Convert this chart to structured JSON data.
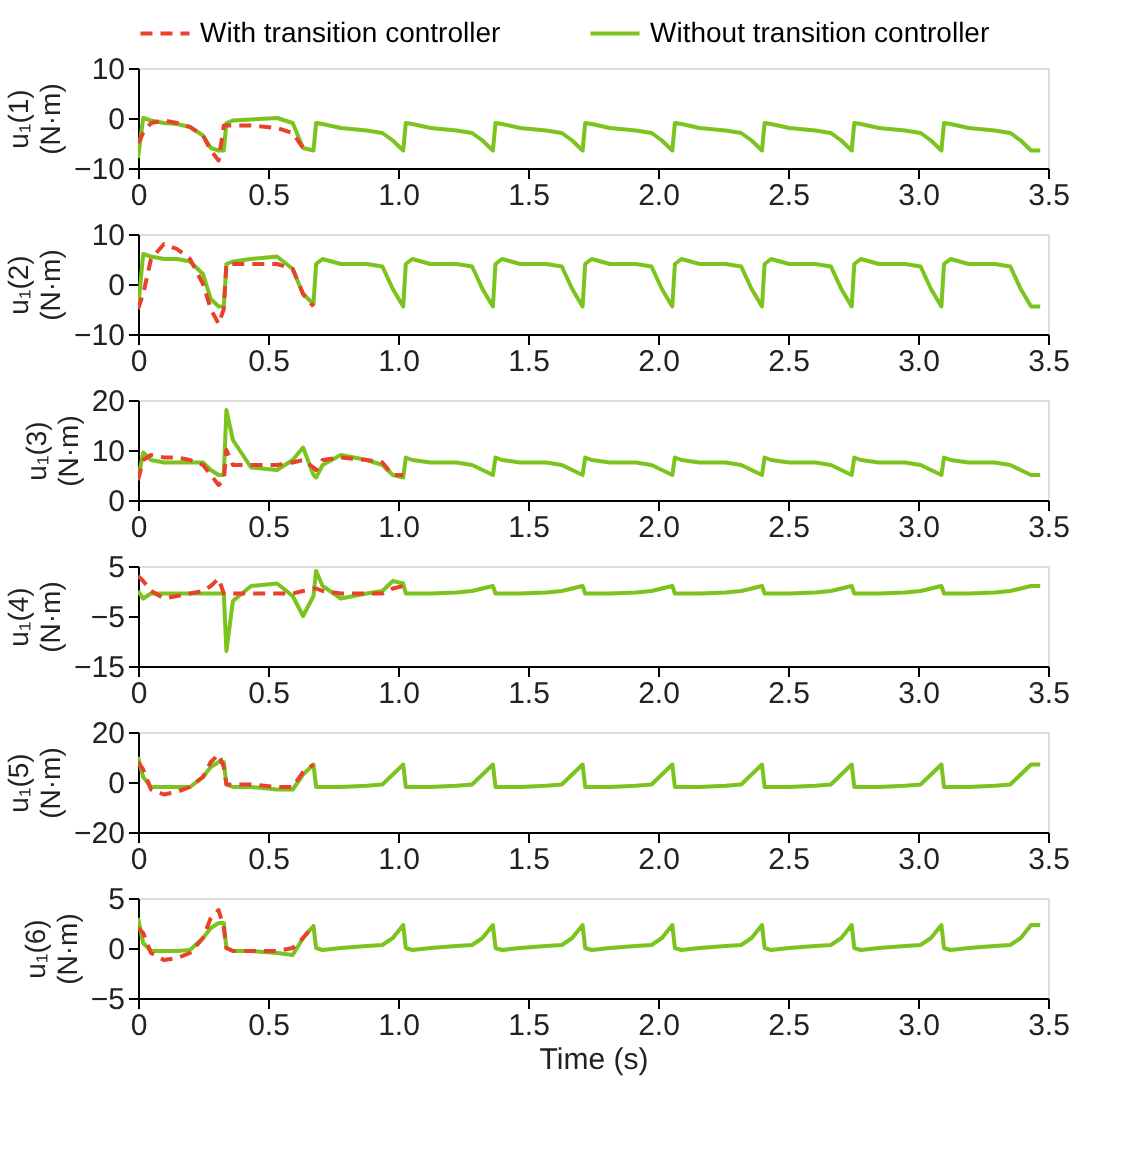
{
  "chart_data": [
    {
      "type": "line",
      "legend": "top",
      "ylabel": "u₁(1)\n(N·m)",
      "xlim": [
        0,
        3.5
      ],
      "xticks": [
        0,
        0.5,
        {
          "value": 1,
          "label": "1.0"
        },
        1.5,
        {
          "value": 2,
          "label": "2.0"
        },
        2.5,
        {
          "value": 3,
          "label": "3.0"
        },
        3.5
      ],
      "ylim": [
        -10,
        10
      ],
      "yticks": [
        -10,
        0,
        10
      ],
      "x": [
        0,
        0.02,
        0.05,
        0.1,
        0.15,
        0.2,
        0.25,
        0.28,
        0.31,
        0.33,
        0.34,
        0.365,
        0.435,
        0.535,
        0.595,
        0.635,
        0.675,
        0.685,
        0.71,
        0.78,
        0.88,
        0.94,
        0.98,
        1.02,
        1.03,
        1.055,
        1.125,
        1.225,
        1.285,
        1.325,
        1.365,
        1.375,
        1.4,
        1.47,
        1.57,
        1.63,
        1.67,
        1.71,
        1.72,
        1.745,
        1.815,
        1.915,
        1.975,
        2.015,
        2.055,
        2.065,
        2.09,
        2.16,
        2.26,
        2.32,
        2.36,
        2.4,
        2.41,
        2.435,
        2.505,
        2.605,
        2.665,
        2.705,
        2.745,
        2.755,
        2.78,
        2.85,
        2.95,
        3.01,
        3.05,
        3.09,
        3.1,
        3.125,
        3.195,
        3.295,
        3.355,
        3.395,
        3.435,
        3.47
      ],
      "series": [
        {
          "name": "With transition controller",
          "color": "#e8412c",
          "line_style": "dashed",
          "values": [
            -5,
            -3,
            -1,
            -0.5,
            -1,
            -1.8,
            -3.5,
            -6.5,
            -8.5,
            -1.5,
            -1.5,
            -1.5,
            -1.5,
            -2,
            -3,
            -6,
            null,
            null,
            null,
            null,
            null,
            null,
            null,
            null,
            null,
            null,
            null,
            null,
            null,
            null,
            null,
            null,
            null,
            null,
            null,
            null,
            null,
            null,
            null,
            null,
            null,
            null,
            null,
            null,
            null,
            null,
            null,
            null,
            null,
            null,
            null,
            null,
            null,
            null,
            null,
            null,
            null,
            null,
            null,
            null,
            null,
            null,
            null,
            null,
            null,
            null,
            null,
            null,
            null,
            null,
            null,
            null,
            null,
            null
          ]
        },
        {
          "name": "Without transition controller",
          "color": "#7ac41d",
          "line_style": "solid",
          "values": [
            -8,
            0,
            -0.5,
            -1,
            -1.2,
            -1.8,
            -3.5,
            -6,
            -6.5,
            -6.5,
            -1,
            -0.5,
            -0.3,
            0,
            -1,
            -6,
            -6.5,
            -1,
            -1.2,
            -2,
            -2.5,
            -3,
            -4.5,
            -6.5,
            -1,
            -1.2,
            -2,
            -2.5,
            -3,
            -4.5,
            -6.5,
            -1,
            -1.2,
            -2,
            -2.5,
            -3,
            -4.5,
            -6.5,
            -1,
            -1.2,
            -2,
            -2.5,
            -3,
            -4.5,
            -6.5,
            -1,
            -1.2,
            -2,
            -2.5,
            -3,
            -4.5,
            -6.5,
            -1,
            -1.2,
            -2,
            -2.5,
            -3,
            -4.5,
            -6.5,
            -1,
            -1.2,
            -2,
            -2.5,
            -3,
            -4.5,
            -6.5,
            -1,
            -1.2,
            -2,
            -2.5,
            -3,
            -4.5,
            -6.5,
            -6.5
          ]
        }
      ]
    },
    {
      "type": "line",
      "ylabel": "u₁(2)\n(N·m)",
      "xlim": [
        0,
        3.5
      ],
      "xticks": [
        0,
        0.5,
        {
          "value": 1,
          "label": "1.0"
        },
        1.5,
        {
          "value": 2,
          "label": "2.0"
        },
        2.5,
        {
          "value": 3,
          "label": "3.0"
        },
        3.5
      ],
      "ylim": [
        -10,
        10
      ],
      "yticks": [
        -10,
        0,
        10
      ],
      "x": [
        0,
        0.02,
        0.05,
        0.1,
        0.15,
        0.2,
        0.25,
        0.28,
        0.31,
        0.33,
        0.34,
        0.365,
        0.435,
        0.535,
        0.595,
        0.635,
        0.675,
        0.685,
        0.71,
        0.78,
        0.88,
        0.94,
        0.98,
        1.02,
        1.03,
        1.055,
        1.125,
        1.225,
        1.285,
        1.325,
        1.365,
        1.375,
        1.4,
        1.47,
        1.57,
        1.63,
        1.67,
        1.71,
        1.72,
        1.745,
        1.815,
        1.915,
        1.975,
        2.015,
        2.055,
        2.065,
        2.09,
        2.16,
        2.26,
        2.32,
        2.36,
        2.4,
        2.41,
        2.435,
        2.505,
        2.605,
        2.665,
        2.705,
        2.745,
        2.755,
        2.78,
        2.85,
        2.95,
        3.01,
        3.05,
        3.09,
        3.1,
        3.125,
        3.195,
        3.295,
        3.355,
        3.395,
        3.435,
        3.47
      ],
      "series": [
        {
          "color": "#e8412c",
          "line_style": "dashed",
          "values": [
            -5,
            -2,
            5,
            8,
            7,
            5,
            0,
            -5,
            -8,
            -5,
            4,
            4,
            4,
            4,
            3,
            -2,
            -4.5,
            null,
            null,
            null,
            null,
            null,
            null,
            null,
            null,
            null,
            null,
            null,
            null,
            null,
            null,
            null,
            null,
            null,
            null,
            null,
            null,
            null,
            null,
            null,
            null,
            null,
            null,
            null,
            null,
            null,
            null,
            null,
            null,
            null,
            null,
            null,
            null,
            null,
            null,
            null,
            null,
            null,
            null,
            null,
            null,
            null,
            null,
            null,
            null,
            null,
            null,
            null,
            null,
            null,
            null,
            null,
            null,
            null
          ]
        },
        {
          "color": "#7ac41d",
          "line_style": "solid",
          "values": [
            -5,
            6,
            5.5,
            5,
            5,
            4.5,
            2,
            -3,
            -4.5,
            -4.5,
            4,
            4.5,
            5,
            5.5,
            3,
            -2,
            -4,
            4,
            5,
            4,
            4,
            3.5,
            -1,
            -4.5,
            4,
            5,
            4,
            4,
            3.5,
            -1,
            -4.5,
            4,
            5,
            4,
            4,
            3.5,
            -1,
            -4.5,
            4,
            5,
            4,
            4,
            3.5,
            -1,
            -4.5,
            4,
            5,
            4,
            4,
            3.5,
            -1,
            -4.5,
            4,
            5,
            4,
            4,
            3.5,
            -1,
            -4.5,
            4,
            5,
            4,
            4,
            3.5,
            -1,
            -4.5,
            4,
            5,
            4,
            4,
            3.5,
            -1,
            -4.5,
            -4.5
          ]
        }
      ]
    },
    {
      "type": "line",
      "ylabel": "u₁(3)\n(N·m)",
      "xlim": [
        0,
        3.5
      ],
      "xticks": [
        0,
        0.5,
        {
          "value": 1,
          "label": "1.0"
        },
        1.5,
        {
          "value": 2,
          "label": "2.0"
        },
        2.5,
        {
          "value": 3,
          "label": "3.0"
        },
        3.5
      ],
      "ylim": [
        0,
        20
      ],
      "yticks": [
        0,
        10,
        20
      ],
      "x": [
        0,
        0.02,
        0.05,
        0.1,
        0.15,
        0.2,
        0.25,
        0.28,
        0.31,
        0.33,
        0.34,
        0.365,
        0.435,
        0.535,
        0.595,
        0.635,
        0.675,
        0.685,
        0.71,
        0.78,
        0.88,
        0.94,
        0.98,
        1.02,
        1.03,
        1.055,
        1.125,
        1.225,
        1.285,
        1.325,
        1.365,
        1.375,
        1.4,
        1.47,
        1.57,
        1.63,
        1.67,
        1.71,
        1.72,
        1.745,
        1.815,
        1.915,
        1.975,
        2.015,
        2.055,
        2.065,
        2.09,
        2.16,
        2.26,
        2.32,
        2.36,
        2.4,
        2.41,
        2.435,
        2.505,
        2.605,
        2.665,
        2.705,
        2.745,
        2.755,
        2.78,
        2.85,
        2.95,
        3.01,
        3.05,
        3.09,
        3.1,
        3.125,
        3.195,
        3.295,
        3.355,
        3.395,
        3.435,
        3.47
      ],
      "series": [
        {
          "color": "#e8412c",
          "line_style": "dashed",
          "values": [
            4,
            8,
            9,
            8.5,
            8.5,
            8,
            7,
            5,
            3,
            4,
            10,
            7,
            7,
            7,
            7.5,
            8,
            6.5,
            6,
            8,
            8.5,
            8,
            7.5,
            5,
            5,
            null,
            null,
            null,
            null,
            null,
            null,
            null,
            null,
            null,
            null,
            null,
            null,
            null,
            null,
            null,
            null,
            null,
            null,
            null,
            null,
            null,
            null,
            null,
            null,
            null,
            null,
            null,
            null,
            null,
            null,
            null,
            null,
            null,
            null,
            null,
            null,
            null,
            null,
            null,
            null,
            null,
            null,
            null,
            null,
            null,
            null,
            null,
            null,
            null,
            null
          ]
        },
        {
          "color": "#7ac41d",
          "line_style": "solid",
          "values": [
            4,
            9.5,
            8,
            7.5,
            7.5,
            7.5,
            7.5,
            6,
            5,
            5,
            18,
            12,
            6.5,
            6,
            8,
            10.5,
            5,
            4.5,
            7,
            9,
            8,
            7,
            5,
            4.5,
            8.5,
            8,
            7.5,
            7.5,
            7,
            6,
            5,
            8.5,
            8,
            7.5,
            7.5,
            7,
            6,
            5,
            8.5,
            8,
            7.5,
            7.5,
            7,
            6,
            5,
            8.5,
            8,
            7.5,
            7.5,
            7,
            6,
            5,
            8.5,
            8,
            7.5,
            7.5,
            7,
            6,
            5,
            8.5,
            8,
            7.5,
            7.5,
            7,
            6,
            5,
            8.5,
            8,
            7.5,
            7.5,
            7,
            6,
            5,
            5
          ]
        }
      ]
    },
    {
      "type": "line",
      "ylabel": "u₁(4)\n(N·m)",
      "xlim": [
        0,
        3.5
      ],
      "xticks": [
        0,
        0.5,
        {
          "value": 1,
          "label": "1.0"
        },
        1.5,
        {
          "value": 2,
          "label": "2.0"
        },
        2.5,
        {
          "value": 3,
          "label": "3.0"
        },
        3.5
      ],
      "ylim": [
        -15,
        5
      ],
      "yticks": [
        -15,
        -5,
        5
      ],
      "x": [
        0,
        0.02,
        0.05,
        0.1,
        0.15,
        0.2,
        0.25,
        0.28,
        0.31,
        0.33,
        0.34,
        0.365,
        0.435,
        0.535,
        0.595,
        0.635,
        0.675,
        0.685,
        0.71,
        0.78,
        0.88,
        0.94,
        0.98,
        1.02,
        1.03,
        1.055,
        1.125,
        1.225,
        1.285,
        1.325,
        1.365,
        1.375,
        1.4,
        1.47,
        1.57,
        1.63,
        1.67,
        1.71,
        1.72,
        1.745,
        1.815,
        1.915,
        1.975,
        2.015,
        2.055,
        2.065,
        2.09,
        2.16,
        2.26,
        2.32,
        2.36,
        2.4,
        2.41,
        2.435,
        2.505,
        2.605,
        2.665,
        2.705,
        2.745,
        2.755,
        2.78,
        2.85,
        2.95,
        3.01,
        3.05,
        3.09,
        3.1,
        3.125,
        3.195,
        3.295,
        3.355,
        3.395,
        3.435,
        3.47
      ],
      "series": [
        {
          "color": "#e8412c",
          "line_style": "dashed",
          "values": [
            3,
            2,
            0,
            -1.5,
            -1,
            -0.5,
            0,
            1,
            2.5,
            -0.5,
            -0.5,
            -0.5,
            -0.5,
            -0.5,
            -0.5,
            0,
            0.5,
            0.5,
            0,
            -0.5,
            -0.5,
            -0.5,
            0.5,
            1,
            null,
            null,
            null,
            null,
            null,
            null,
            null,
            null,
            null,
            null,
            null,
            null,
            null,
            null,
            null,
            null,
            null,
            null,
            null,
            null,
            null,
            null,
            null,
            null,
            null,
            null,
            null,
            null,
            null,
            null,
            null,
            null,
            null,
            null,
            null,
            null,
            null,
            null,
            null,
            null,
            null,
            null,
            null,
            null,
            null,
            null,
            null,
            null,
            null,
            null
          ]
        },
        {
          "color": "#7ac41d",
          "line_style": "solid",
          "values": [
            0,
            -1.5,
            -0.5,
            -0.5,
            -0.5,
            -0.5,
            -0.5,
            -0.5,
            -0.5,
            -0.5,
            -12,
            -2,
            1,
            1.5,
            -1,
            -5,
            -1,
            4,
            1,
            -1.5,
            -0.5,
            0,
            2,
            1.5,
            -0.5,
            -0.5,
            -0.5,
            -0.3,
            0,
            0.5,
            1,
            -0.5,
            -0.5,
            -0.5,
            -0.3,
            0,
            0.5,
            1,
            -0.5,
            -0.5,
            -0.5,
            -0.3,
            0,
            0.5,
            1,
            -0.5,
            -0.5,
            -0.5,
            -0.3,
            0,
            0.5,
            1,
            -0.5,
            -0.5,
            -0.5,
            -0.3,
            0,
            0.5,
            1,
            -0.5,
            -0.5,
            -0.5,
            -0.3,
            0,
            0.5,
            1,
            -0.5,
            -0.5,
            -0.5,
            -0.3,
            0,
            0.5,
            1,
            1
          ]
        }
      ]
    },
    {
      "type": "line",
      "ylabel": "u₁(5)\n(N·m)",
      "xlim": [
        0,
        3.5
      ],
      "xticks": [
        0,
        0.5,
        {
          "value": 1,
          "label": "1.0"
        },
        1.5,
        {
          "value": 2,
          "label": "2.0"
        },
        2.5,
        {
          "value": 3,
          "label": "3.0"
        },
        3.5
      ],
      "ylim": [
        -20,
        20
      ],
      "yticks": [
        -20,
        0,
        20
      ],
      "x": [
        0,
        0.02,
        0.05,
        0.1,
        0.15,
        0.2,
        0.25,
        0.28,
        0.31,
        0.33,
        0.34,
        0.365,
        0.435,
        0.535,
        0.595,
        0.635,
        0.675,
        0.685,
        0.71,
        0.78,
        0.88,
        0.94,
        0.98,
        1.02,
        1.03,
        1.055,
        1.125,
        1.225,
        1.285,
        1.325,
        1.365,
        1.375,
        1.4,
        1.47,
        1.57,
        1.63,
        1.67,
        1.71,
        1.72,
        1.745,
        1.815,
        1.915,
        1.975,
        2.015,
        2.055,
        2.065,
        2.09,
        2.16,
        2.26,
        2.32,
        2.36,
        2.4,
        2.41,
        2.435,
        2.505,
        2.605,
        2.665,
        2.705,
        2.745,
        2.755,
        2.78,
        2.85,
        2.95,
        3.01,
        3.05,
        3.09,
        3.1,
        3.125,
        3.195,
        3.295,
        3.355,
        3.395,
        3.435,
        3.47
      ],
      "series": [
        {
          "color": "#e8412c",
          "line_style": "dashed",
          "values": [
            8,
            5,
            -3,
            -5,
            -4,
            -2,
            2,
            8,
            11,
            6,
            -1,
            -1,
            -1,
            -2,
            -2,
            4,
            7,
            null,
            null,
            null,
            null,
            null,
            null,
            null,
            null,
            null,
            null,
            null,
            null,
            null,
            null,
            null,
            null,
            null,
            null,
            null,
            null,
            null,
            null,
            null,
            null,
            null,
            null,
            null,
            null,
            null,
            null,
            null,
            null,
            null,
            null,
            null,
            null,
            null,
            null,
            null,
            null,
            null,
            null,
            null,
            null,
            null,
            null,
            null,
            null,
            null,
            null,
            null,
            null,
            null,
            null,
            null,
            null,
            null
          ]
        },
        {
          "color": "#7ac41d",
          "line_style": "solid",
          "values": [
            10,
            2,
            -2,
            -2,
            -2,
            -2,
            2,
            6,
            8,
            8,
            -1,
            -2,
            -2,
            -3,
            -3,
            3,
            7,
            -2,
            -2,
            -2,
            -1.5,
            -1,
            3,
            7,
            -2,
            -2,
            -2,
            -1.5,
            -1,
            3,
            7,
            -2,
            -2,
            -2,
            -1.5,
            -1,
            3,
            7,
            -2,
            -2,
            -2,
            -1.5,
            -1,
            3,
            7,
            -2,
            -2,
            -2,
            -1.5,
            -1,
            3,
            7,
            -2,
            -2,
            -2,
            -1.5,
            -1,
            3,
            7,
            -2,
            -2,
            -2,
            -1.5,
            -1,
            3,
            7,
            -2,
            -2,
            -2,
            -1.5,
            -1,
            3,
            7,
            7
          ]
        }
      ]
    },
    {
      "type": "line",
      "ylabel": "u₁(6)\n(N·m)",
      "xlabel": "Time (s)",
      "xlim": [
        0,
        3.5
      ],
      "xticks": [
        0,
        0.5,
        {
          "value": 1,
          "label": "1.0"
        },
        1.5,
        {
          "value": 2,
          "label": "2.0"
        },
        2.5,
        {
          "value": 3,
          "label": "3.0"
        },
        3.5
      ],
      "ylim": [
        -5,
        5
      ],
      "yticks": [
        -5,
        0,
        5
      ],
      "x": [
        0,
        0.02,
        0.05,
        0.1,
        0.15,
        0.2,
        0.25,
        0.28,
        0.31,
        0.33,
        0.34,
        0.365,
        0.435,
        0.535,
        0.595,
        0.635,
        0.675,
        0.685,
        0.71,
        0.78,
        0.88,
        0.94,
        0.98,
        1.02,
        1.03,
        1.055,
        1.125,
        1.225,
        1.285,
        1.325,
        1.365,
        1.375,
        1.4,
        1.47,
        1.57,
        1.63,
        1.67,
        1.71,
        1.72,
        1.745,
        1.815,
        1.915,
        1.975,
        2.015,
        2.055,
        2.065,
        2.09,
        2.16,
        2.26,
        2.32,
        2.36,
        2.4,
        2.41,
        2.435,
        2.505,
        2.605,
        2.665,
        2.705,
        2.745,
        2.755,
        2.78,
        2.85,
        2.95,
        3.01,
        3.05,
        3.09,
        3.1,
        3.125,
        3.195,
        3.295,
        3.355,
        3.395,
        3.435,
        3.47
      ],
      "series": [
        {
          "color": "#e8412c",
          "line_style": "dashed",
          "values": [
            2,
            1.5,
            -0.5,
            -1.2,
            -1,
            -0.5,
            1,
            3,
            3.8,
            2,
            0,
            -0.3,
            -0.3,
            -0.3,
            0,
            1,
            2.3,
            null,
            null,
            null,
            null,
            null,
            null,
            null,
            null,
            null,
            null,
            null,
            null,
            null,
            null,
            null,
            null,
            null,
            null,
            null,
            null,
            null,
            null,
            null,
            null,
            null,
            null,
            null,
            null,
            null,
            null,
            null,
            null,
            null,
            null,
            null,
            null,
            null,
            null,
            null,
            null,
            null,
            null,
            null,
            null,
            null,
            null,
            null,
            null,
            null,
            null,
            null,
            null,
            null,
            null,
            null,
            null,
            null
          ]
        },
        {
          "color": "#7ac41d",
          "line_style": "solid",
          "values": [
            3,
            0.5,
            -0.3,
            -0.3,
            -0.3,
            -0.2,
            1,
            2,
            2.5,
            2.5,
            0,
            -0.3,
            -0.3,
            -0.5,
            -0.7,
            1,
            2.2,
            0,
            -0.2,
            0,
            0.2,
            0.3,
            1,
            2.3,
            0,
            -0.2,
            0,
            0.2,
            0.3,
            1,
            2.3,
            0,
            -0.2,
            0,
            0.2,
            0.3,
            1,
            2.3,
            0,
            -0.2,
            0,
            0.2,
            0.3,
            1,
            2.3,
            0,
            -0.2,
            0,
            0.2,
            0.3,
            1,
            2.3,
            0,
            -0.2,
            0,
            0.2,
            0.3,
            1,
            2.3,
            0,
            -0.2,
            0,
            0.2,
            0.3,
            1,
            2.3,
            0,
            -0.2,
            0,
            0.2,
            0.3,
            1,
            2.3,
            2.3
          ]
        }
      ]
    }
  ]
}
